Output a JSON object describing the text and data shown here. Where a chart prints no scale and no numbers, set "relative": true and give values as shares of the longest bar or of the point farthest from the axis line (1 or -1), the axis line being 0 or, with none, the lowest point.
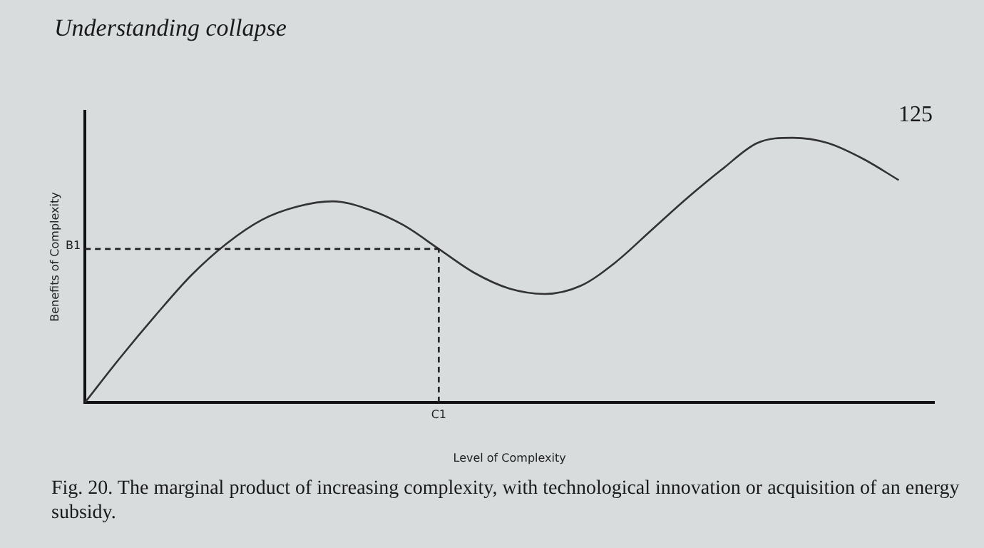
{
  "chart_data": {
    "type": "line",
    "relative": true,
    "xlabel": "Level of Complexity",
    "ylabel": "Benefits of Complexity",
    "color": "#333333",
    "marker": "none",
    "line_style": "solid",
    "legend": false,
    "grid": false,
    "categories": [
      null,
      null,
      null,
      null,
      null,
      null,
      null,
      null,
      null,
      null,
      null,
      null,
      null,
      null,
      null,
      null,
      null,
      null,
      null,
      null,
      null,
      null,
      null,
      null,
      null
    ],
    "values": [
      0,
      0.17,
      0.33,
      0.48,
      0.6,
      0.69,
      0.74,
      0.76,
      0.73,
      0.67,
      0.58,
      0.49,
      0.43,
      0.41,
      0.44,
      0.53,
      0.65,
      0.77,
      0.88,
      0.98,
      1,
      0.98,
      0.92,
      0.84,
      null
    ],
    "ref_lines": [
      {
        "axis": "y",
        "value": 0.58,
        "label": "B1",
        "line_style": "dashed",
        "color": "#222222"
      }
    ],
    "annotations": [
      "Understanding collapse",
      "125",
      "Fig. 20. The marginal product of increasing complexity, with technological innovation or acquisition of an energy subsidy.",
      "C1"
    ]
  }
}
